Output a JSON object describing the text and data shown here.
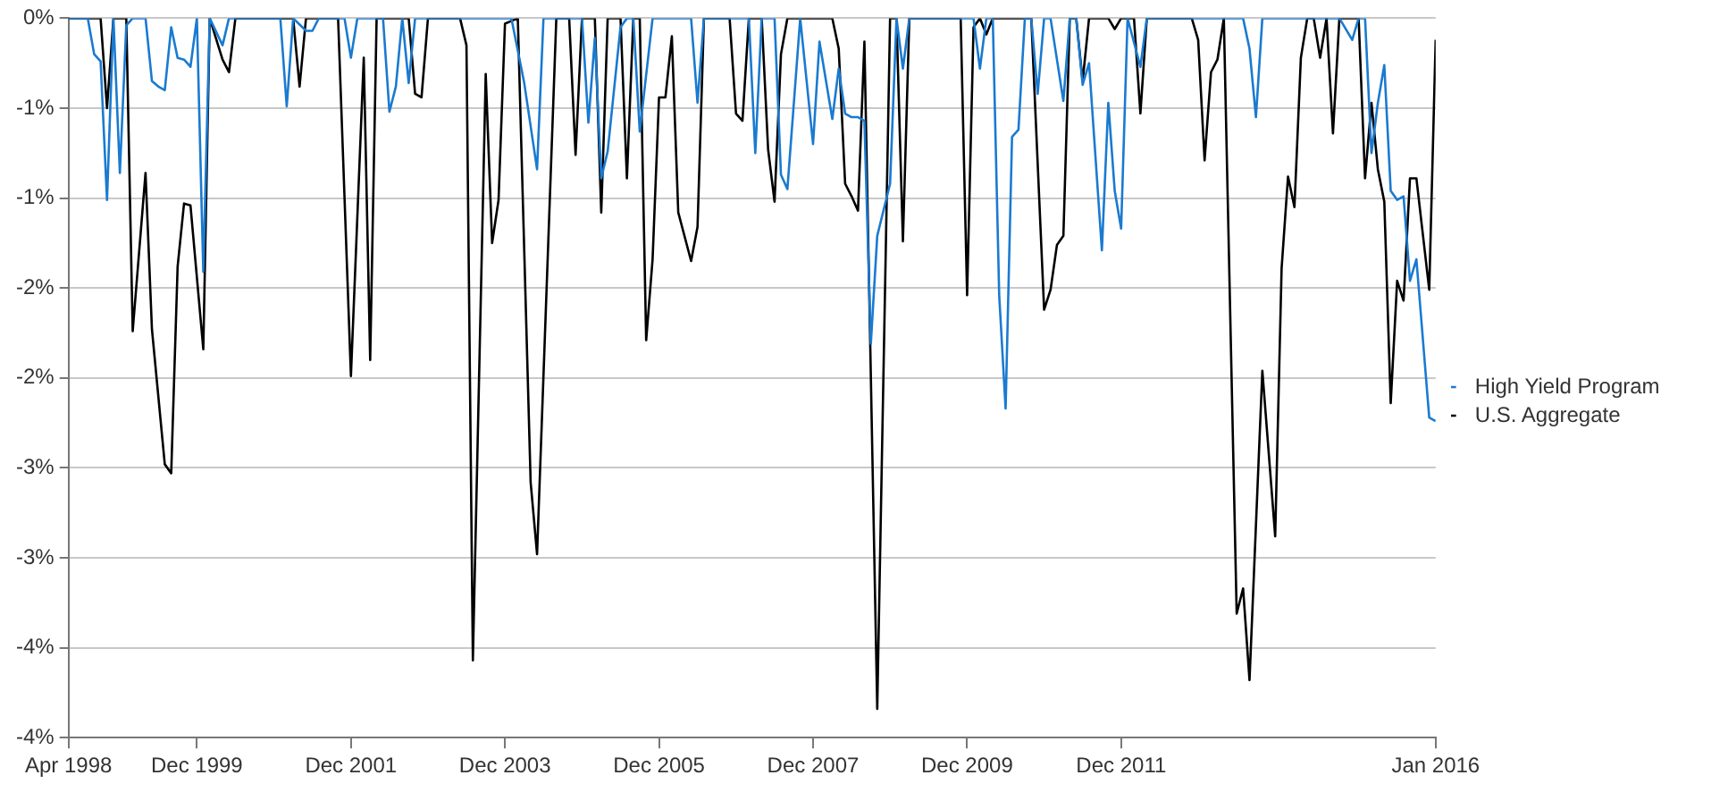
{
  "chart_data": {
    "type": "line",
    "xlim": [
      "1998-04",
      "2016-01"
    ],
    "xticks": [
      {
        "value": "1998-04",
        "label": "Apr 1998"
      },
      {
        "value": "1999-12",
        "label": "Dec 1999"
      },
      {
        "value": "2001-12",
        "label": "Dec 2001"
      },
      {
        "value": "2003-12",
        "label": "Dec 2003"
      },
      {
        "value": "2005-12",
        "label": "Dec 2005"
      },
      {
        "value": "2007-12",
        "label": "Dec 2007"
      },
      {
        "value": "2009-12",
        "label": "Dec 2009"
      },
      {
        "value": "2011-12",
        "label": "Dec 2011"
      },
      {
        "value": "2016-01",
        "label": "Jan 2016"
      }
    ],
    "ylim": [
      -4,
      0
    ],
    "yticks": [
      {
        "value": -4,
        "label": "-4%"
      },
      {
        "value": -3.5,
        "label": "-4%"
      },
      {
        "value": -3,
        "label": "-3%"
      },
      {
        "value": -2.5,
        "label": "-3%"
      },
      {
        "value": -2,
        "label": "-2%"
      },
      {
        "value": -1.5,
        "label": "-2%"
      },
      {
        "value": -1,
        "label": "-1%"
      },
      {
        "value": -0.5,
        "label": "-1%"
      },
      {
        "value": 0,
        "label": "0%"
      }
    ],
    "grid": "y",
    "legend": "right",
    "marker": "none",
    "series": [
      {
        "name": "High Yield Program",
        "color": "#1a7ad0",
        "x": [
          "1998-04",
          "1998-07",
          "1998-08",
          "1998-09",
          "1998-10",
          "1998-11",
          "1998-12",
          "1999-01",
          "1999-02",
          "1999-04",
          "1999-05",
          "1999-06",
          "1999-07",
          "1999-08",
          "1999-09",
          "1999-10",
          "1999-11",
          "1999-12",
          "2000-01",
          "2000-02",
          "2000-04",
          "2000-05",
          "2001-01",
          "2001-02",
          "2001-03",
          "2001-05",
          "2001-06",
          "2001-07",
          "2001-11",
          "2001-12",
          "2002-01",
          "2002-05",
          "2002-06",
          "2002-07",
          "2002-08",
          "2002-09",
          "2002-10",
          "2004-01",
          "2004-03",
          "2004-05",
          "2004-06",
          "2004-12",
          "2005-01",
          "2005-02",
          "2005-03",
          "2005-04",
          "2005-06",
          "2005-07",
          "2005-08",
          "2005-09",
          "2005-11",
          "2006-05",
          "2006-06",
          "2006-07",
          "2007-02",
          "2007-03",
          "2007-04",
          "2007-06",
          "2007-07",
          "2007-08",
          "2007-10",
          "2007-12",
          "2008-01",
          "2008-03",
          "2008-04",
          "2008-05",
          "2008-06",
          "2008-07",
          "2008-08",
          "2008-09",
          "2008-10",
          "2008-12",
          "2009-01",
          "2009-02",
          "2009-03",
          "2010-01",
          "2010-02",
          "2010-03",
          "2010-04",
          "2010-05",
          "2010-06",
          "2010-07",
          "2010-08",
          "2010-09",
          "2010-10",
          "2010-11",
          "2010-12",
          "2011-01",
          "2011-03",
          "2011-04",
          "2011-05",
          "2011-06",
          "2011-07",
          "2011-09",
          "2011-10",
          "2011-11",
          "2011-12",
          "2012-01",
          "2012-03",
          "2012-04",
          "2013-07",
          "2013-08",
          "2013-09",
          "2013-10",
          "2014-10",
          "2014-12",
          "2015-01",
          "2015-02",
          "2015-03",
          "2015-04",
          "2015-05",
          "2015-06",
          "2015-07",
          "2015-08",
          "2015-09",
          "2015-10",
          "2015-12",
          "2016-01"
        ],
        "values": [
          0,
          0,
          -0.2,
          -0.24,
          -1.01,
          0,
          -0.86,
          -0.04,
          0,
          0,
          -0.35,
          -0.38,
          -0.4,
          -0.05,
          -0.22,
          -0.23,
          -0.27,
          0,
          -1.41,
          0,
          -0.15,
          0,
          0,
          -0.49,
          0,
          -0.07,
          -0.07,
          0,
          0,
          -0.22,
          0,
          0,
          -0.52,
          -0.38,
          0,
          -0.36,
          0,
          0,
          -0.36,
          -0.84,
          0,
          0,
          -0.58,
          -0.11,
          -0.89,
          -0.74,
          -0.05,
          0,
          0,
          -0.63,
          0,
          0,
          -0.47,
          0,
          0,
          -0.75,
          0,
          0,
          -0.87,
          -0.95,
          0,
          -0.7,
          -0.13,
          -0.56,
          -0.28,
          -0.53,
          -0.55,
          -0.55,
          -0.57,
          -1.81,
          -1.21,
          -0.92,
          0,
          -0.28,
          0,
          0,
          -0.28,
          0,
          0,
          -1.54,
          -2.17,
          -0.66,
          -0.62,
          0,
          0,
          -0.42,
          0,
          0,
          -0.46,
          0,
          0,
          -0.37,
          -0.25,
          -1.29,
          -0.47,
          -0.96,
          -1.17,
          0,
          -0.27,
          0,
          0,
          -0.17,
          -0.55,
          0,
          0,
          -0.12,
          0,
          0,
          -0.75,
          -0.47,
          -0.26,
          -0.96,
          -1.01,
          -0.99,
          -1.46,
          -1.34,
          -2.22,
          -2.24
        ]
      },
      {
        "name": "U.S. Aggregate",
        "color": "#000000",
        "x": [
          "1998-04",
          "1998-09",
          "1998-10",
          "1998-11",
          "1999-01",
          "1999-02",
          "1999-04",
          "1999-05",
          "1999-07",
          "1999-08",
          "1999-09",
          "1999-10",
          "1999-11",
          "2000-01",
          "2000-02",
          "2000-04",
          "2000-05",
          "2000-06",
          "2001-03",
          "2001-04",
          "2001-05",
          "2001-10",
          "2001-12",
          "2002-02",
          "2002-03",
          "2002-04",
          "2002-09",
          "2002-10",
          "2002-11",
          "2002-12",
          "2003-05",
          "2003-06",
          "2003-07",
          "2003-09",
          "2003-10",
          "2003-11",
          "2003-12",
          "2004-02",
          "2004-04",
          "2004-05",
          "2004-08",
          "2004-10",
          "2004-11",
          "2004-12",
          "2005-02",
          "2005-03",
          "2005-04",
          "2005-06",
          "2005-07",
          "2005-08",
          "2005-09",
          "2005-10",
          "2005-11",
          "2005-12",
          "2006-01",
          "2006-02",
          "2006-03",
          "2006-05",
          "2006-06",
          "2006-07",
          "2006-11",
          "2006-12",
          "2007-01",
          "2007-02",
          "2007-04",
          "2007-05",
          "2007-06",
          "2007-07",
          "2007-08",
          "2008-03",
          "2008-04",
          "2008-05",
          "2008-06",
          "2008-07",
          "2008-08",
          "2008-10",
          "2008-12",
          "2009-01",
          "2009-02",
          "2009-03",
          "2009-11",
          "2009-12",
          "2010-01",
          "2010-02",
          "2010-03",
          "2010-04",
          "2010-10",
          "2010-12",
          "2011-01",
          "2011-02",
          "2011-03",
          "2011-04",
          "2011-05",
          "2011-06",
          "2011-07",
          "2011-10",
          "2011-11",
          "2011-12",
          "2012-02",
          "2012-03",
          "2012-04",
          "2012-11",
          "2012-12",
          "2013-01",
          "2013-02",
          "2013-03",
          "2013-04",
          "2013-06",
          "2013-07",
          "2013-08",
          "2013-10",
          "2013-12",
          "2014-01",
          "2014-02",
          "2014-03",
          "2014-04",
          "2014-05",
          "2014-06",
          "2014-07",
          "2014-08",
          "2014-09",
          "2014-10",
          "2015-01",
          "2015-02",
          "2015-03",
          "2015-04",
          "2015-05",
          "2015-06",
          "2015-07",
          "2015-08",
          "2015-09",
          "2015-10",
          "2015-12",
          "2016-01"
        ],
        "values": [
          0,
          0,
          -0.5,
          0,
          0,
          -1.74,
          -0.86,
          -1.73,
          -2.48,
          -2.53,
          -1.38,
          -1.03,
          -1.04,
          -1.84,
          0,
          -0.23,
          -0.3,
          0,
          0,
          -0.38,
          0,
          0,
          -1.99,
          -0.22,
          -1.9,
          0,
          0,
          -0.42,
          -0.44,
          0,
          0,
          -0.15,
          -3.57,
          -0.31,
          -1.25,
          -1.01,
          -0.03,
          0,
          -2.58,
          -2.98,
          0,
          0,
          -0.76,
          0,
          0,
          -1.08,
          0,
          0,
          -0.89,
          0,
          0,
          -1.79,
          -1.34,
          -0.44,
          -0.44,
          -0.1,
          -1.08,
          -1.35,
          -1.16,
          0,
          0,
          -0.53,
          -0.57,
          0,
          0,
          -0.73,
          -1.02,
          -0.2,
          0,
          0,
          -0.17,
          -0.92,
          -0.99,
          -1.07,
          -0.13,
          -3.84,
          0,
          0,
          -1.24,
          0,
          0,
          -1.54,
          -0.05,
          0,
          -0.09,
          0,
          0,
          -1.62,
          -1.51,
          -1.26,
          -1.21,
          0,
          0,
          -0.35,
          0,
          0,
          -0.06,
          0,
          0,
          -0.53,
          0,
          0,
          -0.12,
          -0.79,
          -0.3,
          -0.23,
          0,
          -3.31,
          -3.17,
          -3.68,
          -1.96,
          -2.88,
          -1.39,
          -0.88,
          -1.05,
          -0.22,
          0,
          0,
          -0.22,
          0,
          -0.64,
          0,
          0,
          -0.89,
          -0.47,
          -0.84,
          -1.02,
          -2.14,
          -1.46,
          -1.57,
          -0.89,
          -0.89,
          -1.51,
          -0.12
        ]
      }
    ]
  }
}
